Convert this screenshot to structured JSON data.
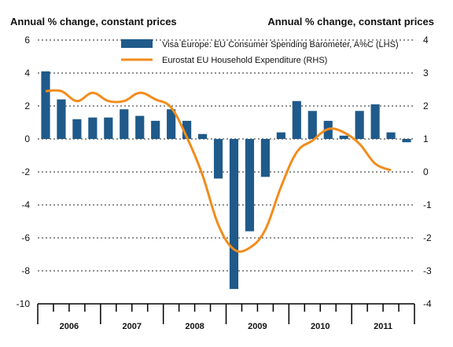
{
  "chart_data": {
    "type": "bar+line",
    "left_axis_title": "Annual % change, constant prices",
    "right_axis_title": "Annual % change, constant prices",
    "left_ylim": [
      -10,
      6
    ],
    "right_ylim": [
      -4,
      4
    ],
    "left_ticks": [
      -10,
      -8,
      -6,
      -4,
      -2,
      0,
      2,
      4,
      6
    ],
    "right_ticks": [
      -4,
      -3,
      -2,
      -1,
      0,
      1,
      2,
      3,
      4
    ],
    "gridlines": "dotted horizontal",
    "legend_position": "top-center",
    "years": [
      "2006",
      "2007",
      "2008",
      "2009",
      "2010",
      "2011"
    ],
    "quarters": [
      "2006 Q1",
      "2006 Q2",
      "2006 Q3",
      "2006 Q4",
      "2007 Q1",
      "2007 Q2",
      "2007 Q3",
      "2007 Q4",
      "2008 Q1",
      "2008 Q2",
      "2008 Q3",
      "2008 Q4",
      "2009 Q1",
      "2009 Q2",
      "2009 Q3",
      "2009 Q4",
      "2010 Q1",
      "2010 Q2",
      "2010 Q3",
      "2010 Q4",
      "2011 Q1",
      "2011 Q2",
      "2011 Q3",
      "2011 Q4"
    ],
    "series": [
      {
        "name": "Visa Europe: EU Consumer Spending Barometer, A%C (LHS)",
        "kind": "bar",
        "axis": "left",
        "color": "#1f5a8a",
        "values": [
          4.1,
          2.4,
          1.2,
          1.3,
          1.3,
          1.8,
          1.4,
          1.1,
          1.8,
          1.1,
          0.3,
          -2.4,
          -9.1,
          -5.6,
          -2.3,
          0.4,
          2.3,
          1.7,
          1.1,
          0.2,
          1.7,
          2.1,
          0.4,
          -0.2
        ]
      },
      {
        "name": "Eurostat EU Household Expenditure (RHS)",
        "kind": "line",
        "axis": "right",
        "color": "#f28c1c",
        "x": [
          0,
          1,
          2,
          3,
          4,
          5,
          6,
          7,
          8,
          9,
          10,
          11,
          12,
          13,
          14,
          15,
          16,
          17,
          18,
          19,
          20,
          21,
          22
        ],
        "values": [
          2.45,
          2.45,
          2.15,
          2.4,
          2.15,
          2.15,
          2.4,
          2.2,
          1.95,
          1.05,
          -0.1,
          -1.6,
          -2.35,
          -2.3,
          -1.75,
          -0.45,
          0.6,
          0.95,
          1.3,
          1.2,
          0.85,
          0.25,
          0.05
        ]
      }
    ]
  }
}
